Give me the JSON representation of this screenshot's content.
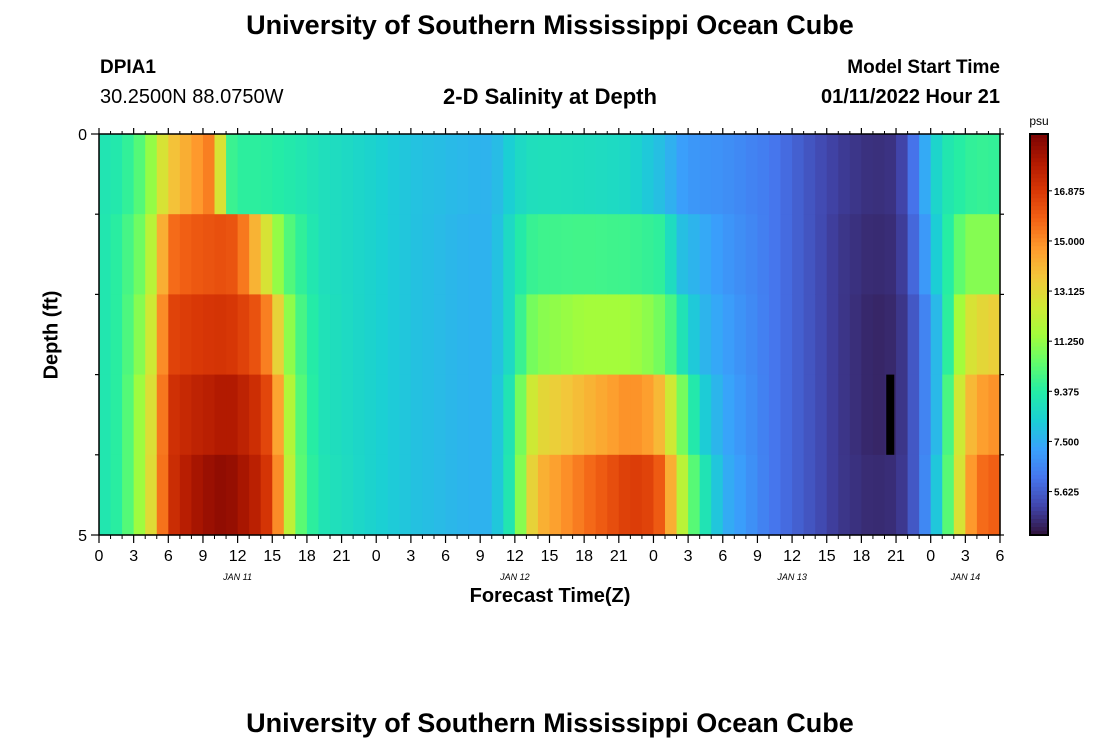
{
  "header": {
    "title": "University of Southern Mississippi Ocean Cube",
    "station": "DPIA1",
    "coords": "30.2500N  88.0750W",
    "subtitle": "2-D Salinity at Depth",
    "model_start_label": "Model Start Time",
    "model_start_value": "01/11/2022 Hour 21"
  },
  "footer": {
    "title": "University of Southern Mississippi Ocean Cube"
  },
  "chart_data": {
    "type": "heatmap",
    "title": "2-D Salinity at Depth",
    "xlabel": "Forecast Time(Z)",
    "ylabel": "Depth (ft)",
    "x_start_hour": 0,
    "x_end_hour": 78,
    "x_step_hours": 1,
    "x_tick_step_hours": 3,
    "x_tick_labels": [
      "0",
      "3",
      "6",
      "9",
      "12",
      "15",
      "18",
      "21",
      "0",
      "3",
      "6",
      "9",
      "12",
      "15",
      "18",
      "21",
      "0",
      "3",
      "6",
      "9",
      "12",
      "15",
      "18",
      "21",
      "0",
      "3",
      "6"
    ],
    "date_labels": [
      {
        "label": "JAN 11",
        "hour": 12
      },
      {
        "label": "JAN 12",
        "hour": 36
      },
      {
        "label": "JAN 13",
        "hour": 60
      },
      {
        "label": "JAN 14",
        "hour": 75
      }
    ],
    "y_ticks": [
      "0",
      "5"
    ],
    "ylim": [
      0,
      5
    ],
    "depth_levels": [
      0,
      1,
      2,
      3,
      4
    ],
    "anchors": [
      {
        "hour": 0,
        "values": [
          9.0,
          9.0,
          9.0,
          9.0,
          9.0
        ]
      },
      {
        "hour": 2,
        "values": [
          9.3,
          9.6,
          9.6,
          9.6,
          9.6
        ]
      },
      {
        "hour": 4,
        "values": [
          10.5,
          11.0,
          11.5,
          12.0,
          12.0
        ]
      },
      {
        "hour": 5,
        "values": [
          12.0,
          13.0,
          13.5,
          13.8,
          14.0
        ]
      },
      {
        "hour": 6,
        "values": [
          13.5,
          15.5,
          16.5,
          17.0,
          17.0
        ]
      },
      {
        "hour": 8,
        "values": [
          14.5,
          16.0,
          16.8,
          17.5,
          18.0
        ]
      },
      {
        "hour": 10,
        "values": [
          15.5,
          16.2,
          17.0,
          17.8,
          18.5
        ]
      },
      {
        "hour": 11,
        "values": [
          10.0,
          16.3,
          17.0,
          18.0,
          18.6
        ]
      },
      {
        "hour": 12,
        "values": [
          9.5,
          16.0,
          16.8,
          17.8,
          18.3
        ]
      },
      {
        "hour": 14,
        "values": [
          9.5,
          13.5,
          16.0,
          17.0,
          17.5
        ]
      },
      {
        "hour": 15,
        "values": [
          9.4,
          12.0,
          14.5,
          16.0,
          16.5
        ]
      },
      {
        "hour": 16,
        "values": [
          9.3,
          10.5,
          12.0,
          13.0,
          13.5
        ]
      },
      {
        "hour": 17,
        "values": [
          9.2,
          9.8,
          10.3,
          10.6,
          10.7
        ]
      },
      {
        "hour": 19,
        "values": [
          8.9,
          8.9,
          9.0,
          9.0,
          9.1
        ]
      },
      {
        "hour": 23,
        "values": [
          8.5,
          8.5,
          8.5,
          8.5,
          8.5
        ]
      },
      {
        "hour": 27,
        "values": [
          8.0,
          8.0,
          8.0,
          8.0,
          8.0
        ]
      },
      {
        "hour": 32,
        "values": [
          7.7,
          7.6,
          7.6,
          7.6,
          7.6
        ]
      },
      {
        "hour": 34,
        "values": [
          7.6,
          7.6,
          7.6,
          7.6,
          7.6
        ]
      },
      {
        "hour": 36,
        "values": [
          8.5,
          9.0,
          9.0,
          9.5,
          9.6
        ]
      },
      {
        "hour": 37,
        "values": [
          8.8,
          9.6,
          10.5,
          12.0,
          12.5
        ]
      },
      {
        "hour": 38,
        "values": [
          8.9,
          9.8,
          11.0,
          13.0,
          14.0
        ]
      },
      {
        "hour": 42,
        "values": [
          8.8,
          9.9,
          11.5,
          14.0,
          15.5
        ]
      },
      {
        "hour": 46,
        "values": [
          8.6,
          9.8,
          11.5,
          15.0,
          16.8
        ]
      },
      {
        "hour": 48,
        "values": [
          8.0,
          9.6,
          11.0,
          14.5,
          16.5
        ]
      },
      {
        "hour": 49,
        "values": [
          7.8,
          9.5,
          10.5,
          13.5,
          15.5
        ]
      },
      {
        "hour": 50,
        "values": [
          7.3,
          8.0,
          9.5,
          11.5,
          13.0
        ]
      },
      {
        "hour": 51,
        "values": [
          7.0,
          7.8,
          8.5,
          10.0,
          11.0
        ]
      },
      {
        "hour": 52,
        "values": [
          6.9,
          7.5,
          7.8,
          8.5,
          9.5
        ]
      },
      {
        "hour": 54,
        "values": [
          6.8,
          7.0,
          7.2,
          7.4,
          7.6
        ]
      },
      {
        "hour": 58,
        "values": [
          6.3,
          6.3,
          6.3,
          6.3,
          6.3
        ]
      },
      {
        "hour": 62,
        "values": [
          5.3,
          5.3,
          5.3,
          5.3,
          5.3
        ]
      },
      {
        "hour": 64,
        "values": [
          4.9,
          4.8,
          4.8,
          4.8,
          4.8
        ]
      },
      {
        "hour": 67,
        "values": [
          4.6,
          4.5,
          4.4,
          4.4,
          4.5
        ]
      },
      {
        "hour": 69,
        "values": [
          4.7,
          4.6,
          4.5,
          4.5,
          4.6
        ]
      },
      {
        "hour": 70,
        "values": [
          5.4,
          5.2,
          5.0,
          5.0,
          5.0
        ]
      },
      {
        "hour": 71,
        "values": [
          6.8,
          6.5,
          6.0,
          6.0,
          6.0
        ]
      },
      {
        "hour": 72,
        "values": [
          8.0,
          7.5,
          7.0,
          7.0,
          7.2
        ]
      },
      {
        "hour": 73,
        "values": [
          9.0,
          9.0,
          8.5,
          8.5,
          9.0
        ]
      },
      {
        "hour": 74,
        "values": [
          9.3,
          9.8,
          10.5,
          11.5,
          11.5
        ]
      },
      {
        "hour": 75,
        "values": [
          9.5,
          11.0,
          12.5,
          13.5,
          14.0
        ]
      },
      {
        "hour": 76,
        "values": [
          9.7,
          11.0,
          13.0,
          14.5,
          15.5
        ]
      },
      {
        "hour": 78,
        "values": [
          9.6,
          11.0,
          13.5,
          15.0,
          16.0
        ]
      }
    ],
    "missing": {
      "hour": 68.5,
      "depth_levels": [
        3
      ]
    },
    "colorbar": {
      "unit": "psu",
      "min": 4.0,
      "max": 19.0,
      "tick_values": [
        16.875,
        15.0,
        13.125,
        11.25,
        9.375,
        7.5,
        5.625
      ],
      "tick_labels": [
        "16.875",
        "15.000",
        "13.125",
        "11.250",
        "9.375",
        "7.500",
        "5.625"
      ],
      "colormap": [
        "#30123b",
        "#4145ab",
        "#4675ed",
        "#39a2fc",
        "#1bcfd4",
        "#24eca6",
        "#61fc6c",
        "#a4fc3b",
        "#d1e834",
        "#f3c63a",
        "#fe9b2d",
        "#f36315",
        "#d93806",
        "#b11901",
        "#7a0403"
      ]
    }
  }
}
